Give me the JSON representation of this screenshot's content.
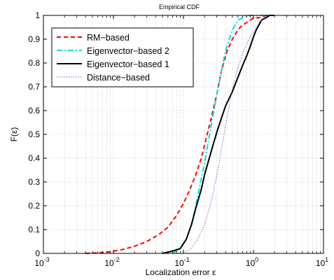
{
  "chart_data": {
    "type": "line",
    "title": "Empirical CDF",
    "xlabel": "Localization error ε",
    "ylabel": "F(ε)",
    "xscale": "log",
    "xlim": [
      0.001,
      10
    ],
    "ylim": [
      0,
      1
    ],
    "grid": true,
    "legend_position": "top-left",
    "x_ticks": [
      {
        "base": "10",
        "exp": "-3"
      },
      {
        "base": "10",
        "exp": "-2"
      },
      {
        "base": "10",
        "exp": "-1"
      },
      {
        "base": "10",
        "exp": "0"
      },
      {
        "base": "10",
        "exp": "1"
      }
    ],
    "y_ticks": [
      "0",
      "0.1",
      "0.2",
      "0.3",
      "0.4",
      "0.5",
      "0.6",
      "0.7",
      "0.8",
      "0.9",
      "1"
    ],
    "series": [
      {
        "name": "RM−based",
        "color": "#ff0000",
        "style": "dashed",
        "x": [
          0.004,
          0.008,
          0.013,
          0.02,
          0.03,
          0.045,
          0.06,
          0.08,
          0.1,
          0.12,
          0.15,
          0.18,
          0.21,
          0.25,
          0.3,
          0.35,
          0.42,
          0.5,
          0.6,
          0.7,
          0.8,
          0.9,
          1.0,
          1.2,
          1.5,
          2.0
        ],
        "y": [
          0.0,
          0.005,
          0.015,
          0.03,
          0.05,
          0.08,
          0.11,
          0.16,
          0.21,
          0.26,
          0.33,
          0.4,
          0.48,
          0.57,
          0.67,
          0.77,
          0.85,
          0.9,
          0.94,
          0.96,
          0.97,
          0.98,
          0.99,
          0.99,
          1.0,
          1.0
        ]
      },
      {
        "name": "Eigenvector−based 2",
        "color": "#00e0e0",
        "style": "dashdot",
        "x": [
          0.07,
          0.09,
          0.11,
          0.13,
          0.15,
          0.17,
          0.2,
          0.23,
          0.26,
          0.3,
          0.35,
          0.4,
          0.45,
          0.5,
          0.55,
          0.6,
          0.7,
          0.8,
          1.0,
          1.3,
          1.7,
          2.0
        ],
        "y": [
          0.0,
          0.02,
          0.06,
          0.12,
          0.2,
          0.28,
          0.38,
          0.48,
          0.57,
          0.67,
          0.77,
          0.85,
          0.9,
          0.94,
          0.96,
          0.98,
          0.99,
          1.0,
          1.0,
          1.0,
          1.0,
          1.0
        ]
      },
      {
        "name": "Eigenvector−based 1",
        "color": "#000000",
        "style": "solid",
        "x": [
          0.05,
          0.07,
          0.09,
          0.11,
          0.13,
          0.15,
          0.18,
          0.2,
          0.25,
          0.3,
          0.35,
          0.4,
          0.5,
          0.6,
          0.7,
          0.8,
          0.9,
          1.0,
          1.1,
          1.2,
          1.3,
          1.5,
          1.7,
          2.0
        ],
        "y": [
          0.0,
          0.01,
          0.02,
          0.06,
          0.12,
          0.19,
          0.27,
          0.33,
          0.43,
          0.51,
          0.57,
          0.62,
          0.68,
          0.74,
          0.79,
          0.83,
          0.87,
          0.91,
          0.94,
          0.96,
          0.98,
          0.99,
          1.0,
          1.0
        ]
      },
      {
        "name": "Distance−based",
        "color": "#6a5acd",
        "style": "dotted",
        "x": [
          0.1,
          0.13,
          0.16,
          0.2,
          0.25,
          0.3,
          0.35,
          0.4,
          0.45,
          0.5,
          0.55,
          0.6,
          0.7,
          0.8,
          0.9,
          1.0,
          1.1,
          1.2,
          1.4,
          1.6,
          2.0
        ],
        "y": [
          0.0,
          0.02,
          0.06,
          0.12,
          0.22,
          0.33,
          0.44,
          0.54,
          0.62,
          0.69,
          0.74,
          0.78,
          0.84,
          0.88,
          0.91,
          0.93,
          0.95,
          0.97,
          0.99,
          1.0,
          1.0
        ]
      }
    ]
  }
}
